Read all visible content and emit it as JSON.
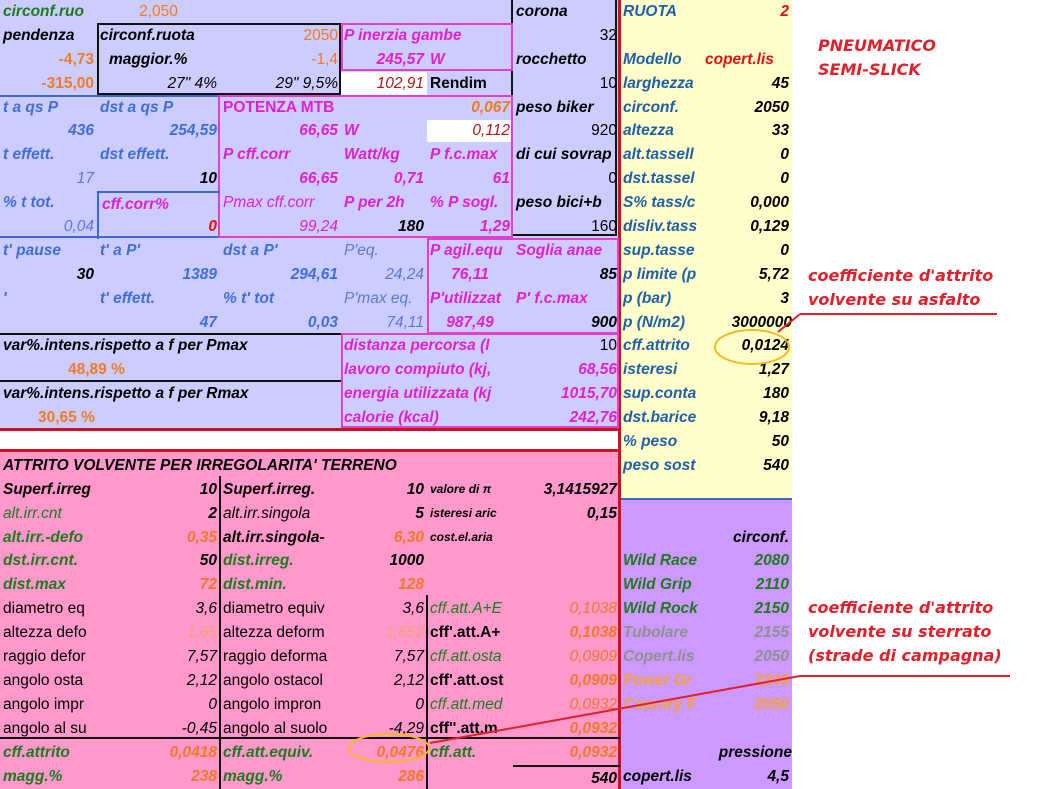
{
  "colors": {
    "lavender": "#ccccff",
    "pink": "#ff99cc",
    "cream": "#ffffcc",
    "purple": "#cc99ff",
    "accent_red": "#e0202a",
    "highlight": "#f5b820"
  },
  "sheet": {
    "r1": {
      "A": "circonf.ruo",
      "B": "2,050",
      "F": "corona",
      "G": "RUOTA",
      "H": "2"
    },
    "r2": {
      "A": "pendenza",
      "B": "circonf.ruota",
      "C": "2050",
      "D": "P inerzia gambe",
      "F": "32"
    },
    "r3": {
      "A": "-4,73",
      "B": "maggior.%",
      "C": "-1,4",
      "D": "245,57",
      "E": "W",
      "F": "rocchetto",
      "G": "Modello",
      "H": "copert.lis"
    },
    "r4": {
      "A": "-315,00",
      "B": "27\" 4%",
      "C": "29\" 9,5%",
      "D": "102,91",
      "E": "Rendim",
      "F": "10",
      "G": "larghezza",
      "H": "45"
    },
    "r5": {
      "A": "t a qs P",
      "B": "dst a qs P",
      "C": "POTENZA MTB",
      "E": "0,067",
      "F": "peso biker",
      "G": "circonf.",
      "H": "2050"
    },
    "r6": {
      "A": "436",
      "B": "254,59",
      "C": "66,65",
      "D": "W",
      "E": "0,112",
      "F": "920",
      "G": "altezza",
      "H": "33"
    },
    "r7": {
      "A": "t effett.",
      "B": "dst effett.",
      "C": "P cff.corr",
      "D": "Watt/kg",
      "E": "P f.c.max",
      "F": "di cui sovrap",
      "G": "alt.tassell",
      "H": "0"
    },
    "r8": {
      "A": "17",
      "B": "10",
      "C": "66,65",
      "D": "0,71",
      "E": "61",
      "F": "0",
      "G": "dst.tassel",
      "H": "0"
    },
    "r9": {
      "A": "% t tot.",
      "B": "cff.corr%",
      "C": "Pmax cff.corr",
      "D": "P per 2h",
      "E": "% P sogl.",
      "F": "peso bici+b",
      "G": "S% tass/c",
      "H": "0,000"
    },
    "r10": {
      "A": "0,04",
      "B": "0",
      "C": "99,24",
      "D": "180",
      "E": "1,29",
      "F": "160",
      "G": "disliv.tass",
      "H": "0,129"
    },
    "r11": {
      "A": "t' pause",
      "B": "t' a P'",
      "C": "dst a P'",
      "D": "P'eq.",
      "E": "P agil.equ",
      "F": "Soglia anae",
      "G": "sup.tasse",
      "H": "0"
    },
    "r12": {
      "A": "30",
      "B": "1389",
      "C": "294,61",
      "D": "24,24",
      "E": "76,11",
      "F": "85",
      "G": "p limite (p",
      "H": "5,72"
    },
    "r13": {
      "A": "'",
      "B": "t' effett.",
      "C": "% t' tot",
      "D": "P'max eq.",
      "E": "P'utilizzat",
      "F": "P' f.c.max",
      "G": "p (bar)",
      "H": "3"
    },
    "r14": {
      "B": "47",
      "C": "0,03",
      "D": "74,11",
      "E": "987,49",
      "F": "900",
      "G": "p (N/m2)",
      "H": "3000000"
    },
    "r15": {
      "A": "var%.intens.rispetto a f per Pmax",
      "D": "distanza percorsa (l",
      "F": "10",
      "G": "cff.attrito",
      "H": "0,0124"
    },
    "r16": {
      "A": "48,89 %",
      "D": "lavoro compiuto (kj,",
      "F": "68,56",
      "G": "isteresi",
      "H": "1,27"
    },
    "r17": {
      "A": "var%.intens.rispetto a f per Rmax",
      "D": "energia utilizzata (kj",
      "F": "1015,70",
      "G": "sup.conta",
      "H": "180"
    },
    "r18": {
      "A": "30,65 %",
      "D": "calorie (kcal)",
      "F": "242,76",
      "G": "dst.barice",
      "H": "9,18"
    },
    "r19": {
      "G": "% peso",
      "H": "50"
    },
    "r20": {
      "A": "ATTRITO VOLVENTE PER IRREGOLARITA' TERRENO",
      "G": "peso sost",
      "H": "540"
    },
    "r21": {
      "A": "Superf.irreg",
      "B": "10",
      "C": "Superf.irreg.",
      "D": "10",
      "E": "valore di π",
      "F": "3,1415927"
    },
    "r22": {
      "A": "alt.irr.cnt",
      "B": "2",
      "C": "alt.irr.singola",
      "D": "5",
      "E": "isteresi aric",
      "F": "0,15"
    },
    "r23": {
      "A": "alt.irr.-defo",
      "B": "0,35",
      "C": "alt.irr.singola-",
      "D": "6,30",
      "E": "cost.el.aria",
      "H": "circonf."
    },
    "r24": {
      "A": "dst.irr.cnt.",
      "B": "50",
      "C": "dist.irreg.",
      "D": "1000",
      "G": "Wild Race",
      "H": "2080"
    },
    "r25": {
      "A": "dist.max",
      "B": "72",
      "C": "dist.min.",
      "D": "128",
      "G": "Wild Grip",
      "H": "2110"
    },
    "r26": {
      "A": "diametro eq",
      "B": "3,6",
      "C": "diametro equiv",
      "D": "3,6",
      "E": "cff.att.A+E",
      "F": "0,1038",
      "G": "Wild Rock",
      "H": "2150"
    },
    "r27": {
      "A": "altezza defo",
      "B": "1,65",
      "C": "altezza deform",
      "D": "1,652",
      "E": "cff'.att.A+",
      "F": "0,1038",
      "G": "Tubolare",
      "H": "2155"
    },
    "r28": {
      "A": "raggio defor",
      "B": "7,57",
      "C": "raggio deforma",
      "D": "7,57",
      "E": "cff.att.osta",
      "F": "0,0909",
      "G": "Copert.lis",
      "H": "2050"
    },
    "r29": {
      "A": "angolo osta",
      "B": "2,12",
      "C": "angolo ostacol",
      "D": "2,12",
      "E": "cff'.att.ost",
      "F": "0,0909",
      "G": "Power Gr",
      "H": "2249"
    },
    "r30": {
      "A": "angolo impr",
      "B": "0",
      "C": "angolo impron",
      "D": "0",
      "E": "cff.att.med",
      "F": "0,0932",
      "G": "Country F",
      "H": "2050"
    },
    "r31": {
      "A": "angolo al su",
      "B": "-0,45",
      "C": "angolo al suolo",
      "D": "-4,29",
      "E": "cff''.att.m",
      "F": "0,0932"
    },
    "r32": {
      "A": "cff.attrito",
      "B": "0,0418",
      "C": "cff.att.equiv.",
      "D": "0,0476",
      "E": "cff.att.",
      "F": "0,0932",
      "H": "pressione"
    },
    "r33": {
      "A": "magg.%",
      "B": "238",
      "C": "magg.%",
      "D": "286",
      "F": "540",
      "G": "copert.lis",
      "H": "4,5"
    }
  },
  "annotations": {
    "tyre_type": [
      "PNEUMATICO",
      "SEMI-SLICK"
    ],
    "asphalt": [
      "coefficiente d'attrito",
      "volvente su asfalto"
    ],
    "dirt": [
      "coefficiente d'attrito",
      "volvente su sterrato",
      "(strade di campagna)"
    ]
  }
}
